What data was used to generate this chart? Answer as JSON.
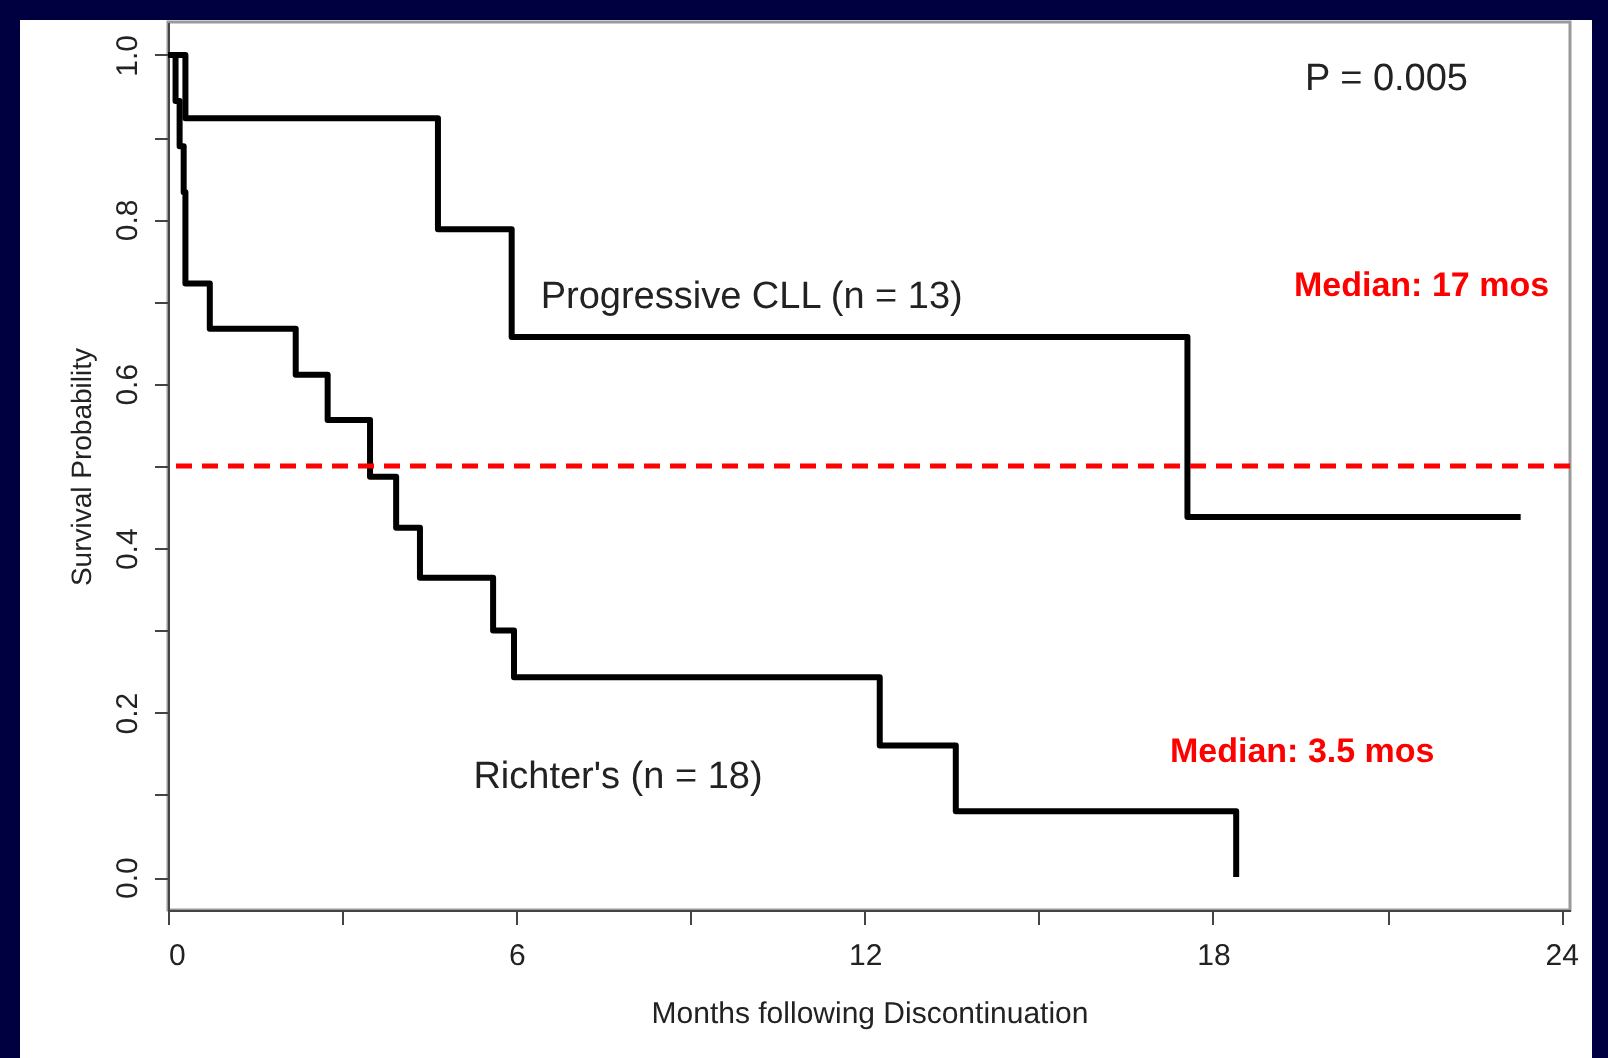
{
  "chart_data": {
    "type": "step",
    "xlabel": "Months following Discontinuation",
    "ylabel": "Survival Probability",
    "xlim": [
      0,
      24.15
    ],
    "ylim": [
      -0.04,
      1.04
    ],
    "xticks": [
      0,
      {
        "value": 3,
        "label": null
      },
      6,
      {
        "value": 9,
        "label": null
      },
      12,
      {
        "value": 15,
        "label": null
      },
      18,
      {
        "value": 21,
        "label": null
      },
      24
    ],
    "yticks": [
      {
        "value": 0,
        "label": "0.0"
      },
      {
        "value": 0.1,
        "label": null
      },
      0.2,
      {
        "value": 0.3,
        "label": null
      },
      0.4,
      {
        "value": 0.5,
        "label": null
      },
      0.6,
      {
        "value": 0.7,
        "label": null
      },
      0.8,
      {
        "value": 0.9,
        "label": null
      },
      {
        "value": 1,
        "label": "1.0"
      }
    ],
    "grid": false,
    "marker": "none",
    "line_style": "solid",
    "series": [
      {
        "name": "Progressive CLL (n = 13)",
        "color": "#000000",
        "x": [
          0,
          0.3,
          4.65,
          5.92,
          17.56,
          23.3
        ],
        "values": [
          1.0,
          0.923,
          0.788,
          0.657,
          0.438,
          0.438
        ]
      },
      {
        "name": "Richter's (n = 18)",
        "color": "#000000",
        "x": [
          0,
          0.13,
          0.2,
          0.27,
          0.3,
          0.72,
          2.2,
          2.75,
          3.48,
          3.93,
          4.34,
          5.6,
          5.96,
          12.26,
          13.57,
          18.4
        ],
        "values": [
          1.0,
          0.944,
          0.889,
          0.833,
          0.722,
          0.667,
          0.611,
          0.556,
          0.487,
          0.425,
          0.364,
          0.3,
          0.243,
          0.16,
          0.08,
          0.0
        ]
      }
    ],
    "ref_lines": [
      {
        "axis": "y",
        "value": 0.5,
        "color": "#ff0000",
        "line_style": "dashed"
      }
    ],
    "annotations": [
      "P = 0.005",
      "Median: 17 mos",
      "Median: 3.5 mos"
    ]
  }
}
